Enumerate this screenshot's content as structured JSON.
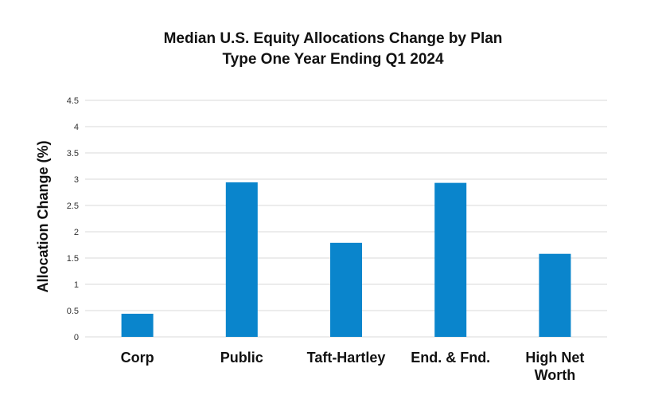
{
  "chart_data": {
    "type": "bar",
    "title_lines": [
      "Median U.S. Equity Allocations Change by Plan",
      "Type One Year Ending Q1 2024"
    ],
    "ylabel": "Allocation Change (%)",
    "xlabel": "",
    "categories": [
      [
        "Corp"
      ],
      [
        "Public"
      ],
      [
        "Taft-Hartley"
      ],
      [
        "End. & Fnd."
      ],
      [
        "High Net",
        "Worth"
      ]
    ],
    "values": [
      0.44,
      2.94,
      1.79,
      2.93,
      1.58
    ],
    "ylim": [
      0,
      4.5
    ],
    "yticks": [
      "0",
      "0.5",
      "1",
      "1.5",
      "2",
      "2.5",
      "3",
      "3.5",
      "4",
      "4.5"
    ],
    "grid": true,
    "legend": "none",
    "bar_color": "#0a85cc",
    "grid_color": "#d9d9d9"
  }
}
